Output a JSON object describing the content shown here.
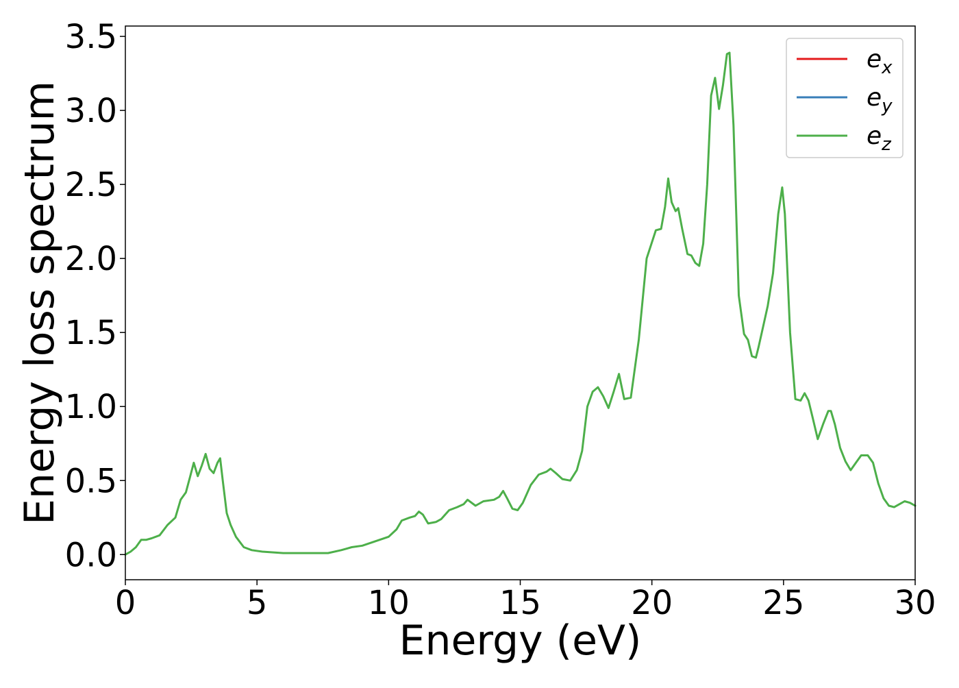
{
  "chart_data": {
    "type": "line",
    "title": "",
    "xlabel": "Energy (eV)",
    "ylabel": "Energy loss spectrum",
    "xlim": [
      0,
      30
    ],
    "ylim": [
      -0.17,
      3.57
    ],
    "xticks": [
      0,
      5,
      10,
      15,
      20,
      25,
      30
    ],
    "xtick_labels": [
      "0",
      "5",
      "10",
      "15",
      "20",
      "25",
      "30"
    ],
    "yticks": [
      0.0,
      0.5,
      1.0,
      1.5,
      2.0,
      2.5,
      3.0,
      3.5
    ],
    "ytick_labels": [
      "0.0",
      "0.5",
      "1.0",
      "1.5",
      "2.0",
      "2.5",
      "3.0",
      "3.5"
    ],
    "grid": false,
    "legend_position": "top-right",
    "legend": [
      {
        "base": "e",
        "sub": "x",
        "color": "#e41a1c"
      },
      {
        "base": "e",
        "sub": "y",
        "color": "#377eb8"
      },
      {
        "base": "e",
        "sub": "z",
        "color": "#4daf4a"
      }
    ],
    "x": [
      0,
      0.2,
      0.4,
      0.6,
      0.8,
      1.0,
      1.3,
      1.6,
      1.9,
      2.1,
      2.3,
      2.45,
      2.6,
      2.75,
      2.9,
      3.05,
      3.2,
      3.35,
      3.5,
      3.6,
      3.7,
      3.85,
      4.0,
      4.2,
      4.5,
      4.8,
      5.2,
      6.0,
      7.0,
      7.7,
      8.2,
      8.6,
      9.0,
      9.5,
      10.0,
      10.3,
      10.5,
      10.8,
      11.0,
      11.15,
      11.3,
      11.5,
      11.8,
      12.0,
      12.3,
      12.6,
      12.85,
      13.0,
      13.3,
      13.6,
      14.0,
      14.2,
      14.35,
      14.5,
      14.7,
      14.9,
      15.1,
      15.4,
      15.7,
      16.0,
      16.15,
      16.35,
      16.6,
      16.9,
      17.15,
      17.35,
      17.55,
      17.75,
      17.95,
      18.15,
      18.35,
      18.55,
      18.75,
      18.95,
      19.2,
      19.5,
      19.8,
      20.15,
      20.35,
      20.5,
      20.62,
      20.75,
      20.9,
      21.0,
      21.15,
      21.35,
      21.5,
      21.65,
      21.8,
      21.95,
      22.1,
      22.25,
      22.4,
      22.55,
      22.7,
      22.85,
      22.95,
      23.1,
      23.3,
      23.5,
      23.65,
      23.8,
      23.95,
      24.05,
      24.2,
      24.4,
      24.6,
      24.8,
      24.95,
      25.05,
      25.25,
      25.45,
      25.65,
      25.8,
      25.95,
      26.1,
      26.3,
      26.5,
      26.7,
      26.8,
      26.95,
      27.15,
      27.35,
      27.55,
      27.75,
      27.95,
      28.2,
      28.4,
      28.6,
      28.8,
      29.0,
      29.2,
      29.4,
      29.6,
      29.8,
      30.0
    ],
    "series": [
      {
        "color": "#4daf4a",
        "values": [
          0.0,
          0.02,
          0.05,
          0.1,
          0.1,
          0.11,
          0.13,
          0.2,
          0.25,
          0.37,
          0.42,
          0.52,
          0.62,
          0.53,
          0.6,
          0.68,
          0.58,
          0.55,
          0.62,
          0.65,
          0.5,
          0.28,
          0.2,
          0.12,
          0.05,
          0.03,
          0.02,
          0.01,
          0.01,
          0.01,
          0.03,
          0.05,
          0.06,
          0.09,
          0.12,
          0.17,
          0.23,
          0.25,
          0.26,
          0.29,
          0.27,
          0.21,
          0.22,
          0.24,
          0.3,
          0.32,
          0.34,
          0.37,
          0.33,
          0.36,
          0.37,
          0.39,
          0.43,
          0.38,
          0.31,
          0.3,
          0.35,
          0.47,
          0.54,
          0.56,
          0.58,
          0.55,
          0.51,
          0.5,
          0.57,
          0.7,
          1.0,
          1.1,
          1.13,
          1.07,
          0.99,
          1.1,
          1.22,
          1.05,
          1.06,
          1.45,
          2.0,
          2.19,
          2.2,
          2.35,
          2.54,
          2.38,
          2.32,
          2.34,
          2.2,
          2.03,
          2.02,
          1.97,
          1.95,
          2.1,
          2.5,
          3.1,
          3.22,
          3.01,
          3.17,
          3.38,
          3.39,
          2.9,
          1.75,
          1.49,
          1.45,
          1.34,
          1.33,
          1.4,
          1.52,
          1.68,
          1.9,
          2.3,
          2.48,
          2.3,
          1.5,
          1.05,
          1.04,
          1.09,
          1.04,
          0.93,
          0.78,
          0.88,
          0.97,
          0.97,
          0.88,
          0.72,
          0.63,
          0.57,
          0.62,
          0.67,
          0.67,
          0.62,
          0.48,
          0.38,
          0.33,
          0.32,
          0.34,
          0.36,
          0.35,
          0.33
        ]
      }
    ]
  }
}
